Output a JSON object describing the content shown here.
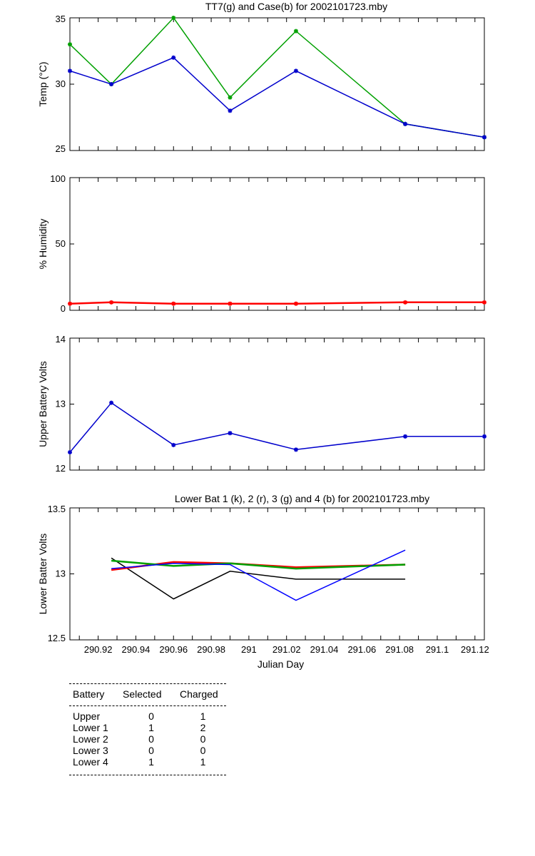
{
  "chart_data": [
    {
      "type": "line",
      "title": "TT7(g) and Case(b) for 2002101723.mby",
      "ylabel": "Temp  (°C)",
      "xlabel": "",
      "xlim": [
        290.905,
        291.125
      ],
      "ylim": [
        25,
        35
      ],
      "yticks": [
        "25",
        "30",
        "35"
      ],
      "series": [
        {
          "name": "TT7",
          "color": "#00a000",
          "x": [
            290.905,
            290.927,
            290.96,
            290.99,
            291.025,
            291.083,
            291.125
          ],
          "y": [
            33,
            30,
            35,
            29,
            34,
            27,
            26
          ]
        },
        {
          "name": "Case",
          "color": "#0000cc",
          "x": [
            290.905,
            290.927,
            290.96,
            290.99,
            291.025,
            291.083,
            291.125
          ],
          "y": [
            31,
            30,
            32,
            28,
            31,
            27,
            26
          ]
        }
      ]
    },
    {
      "type": "line",
      "title": "",
      "ylabel": "% Humidity",
      "xlabel": "",
      "xlim": [
        290.905,
        291.125
      ],
      "ylim": [
        0,
        100
      ],
      "yticks": [
        "0",
        "50",
        "100"
      ],
      "series": [
        {
          "name": "Humidity",
          "color": "#ff0000",
          "x": [
            290.905,
            290.927,
            290.96,
            290.99,
            291.025,
            291.083,
            291.125
          ],
          "y": [
            5,
            6,
            5,
            5,
            5,
            6,
            6
          ]
        }
      ]
    },
    {
      "type": "line",
      "title": "",
      "ylabel": "Upper Battery Volts",
      "xlabel": "",
      "xlim": [
        290.905,
        291.125
      ],
      "ylim": [
        12,
        14
      ],
      "yticks": [
        "12",
        "13",
        "14"
      ],
      "series": [
        {
          "name": "Upper",
          "color": "#0000cc",
          "x": [
            290.905,
            290.927,
            290.96,
            290.99,
            291.025,
            291.083,
            291.125
          ],
          "y": [
            12.27,
            13.02,
            12.38,
            12.56,
            12.31,
            12.51,
            12.51
          ]
        }
      ]
    },
    {
      "type": "line",
      "title": "Lower Bat 1 (k), 2 (r), 3 (g) and 4 (b) for 2002101723.mby",
      "ylabel": "Lower Batter Volts",
      "xlabel": "Julian Day",
      "xlim": [
        290.905,
        291.125
      ],
      "ylim": [
        12.5,
        13.5
      ],
      "yticks": [
        "12.5",
        "13",
        "13.5"
      ],
      "xticks": [
        {
          "v": 290.92,
          "label": "290.92"
        },
        {
          "v": 290.94,
          "label": "290.94"
        },
        {
          "v": 290.96,
          "label": "290.96"
        },
        {
          "v": 290.98,
          "label": "290.98"
        },
        {
          "v": 291.0,
          "label": "291"
        },
        {
          "v": 291.02,
          "label": "291.02"
        },
        {
          "v": 291.04,
          "label": "291.04"
        },
        {
          "v": 291.06,
          "label": "291.06"
        },
        {
          "v": 291.08,
          "label": "291.08"
        },
        {
          "v": 291.1,
          "label": "291.1"
        },
        {
          "v": 291.12,
          "label": "291.12"
        }
      ],
      "series": [
        {
          "name": "Lower 1",
          "color": "#000000",
          "x": [
            290.927,
            290.96,
            290.99,
            291.025,
            291.083
          ],
          "y": [
            13.12,
            12.81,
            13.02,
            12.96,
            12.96
          ]
        },
        {
          "name": "Lower 2",
          "color": "#ff0000",
          "x": [
            290.927,
            290.96,
            290.99,
            291.025,
            291.083
          ],
          "y": [
            13.03,
            13.09,
            13.08,
            13.05,
            13.07
          ]
        },
        {
          "name": "Lower 3",
          "color": "#00a000",
          "x": [
            290.927,
            290.96,
            290.99,
            291.025,
            291.083
          ],
          "y": [
            13.1,
            13.06,
            13.08,
            13.04,
            13.07
          ]
        },
        {
          "name": "Lower 4",
          "color": "#0000ff",
          "x": [
            290.927,
            290.96,
            290.99,
            291.025,
            291.083
          ],
          "y": [
            13.04,
            13.08,
            13.07,
            12.8,
            13.18
          ]
        }
      ]
    }
  ],
  "battery_table": {
    "headers": [
      "Battery",
      "Selected",
      "Charged"
    ],
    "rows": [
      [
        "Upper",
        "0",
        "1"
      ],
      [
        "Lower 1",
        "1",
        "2"
      ],
      [
        "Lower 2",
        "0",
        "0"
      ],
      [
        "Lower 3",
        "0",
        "0"
      ],
      [
        "Lower 4",
        "1",
        "1"
      ]
    ]
  }
}
